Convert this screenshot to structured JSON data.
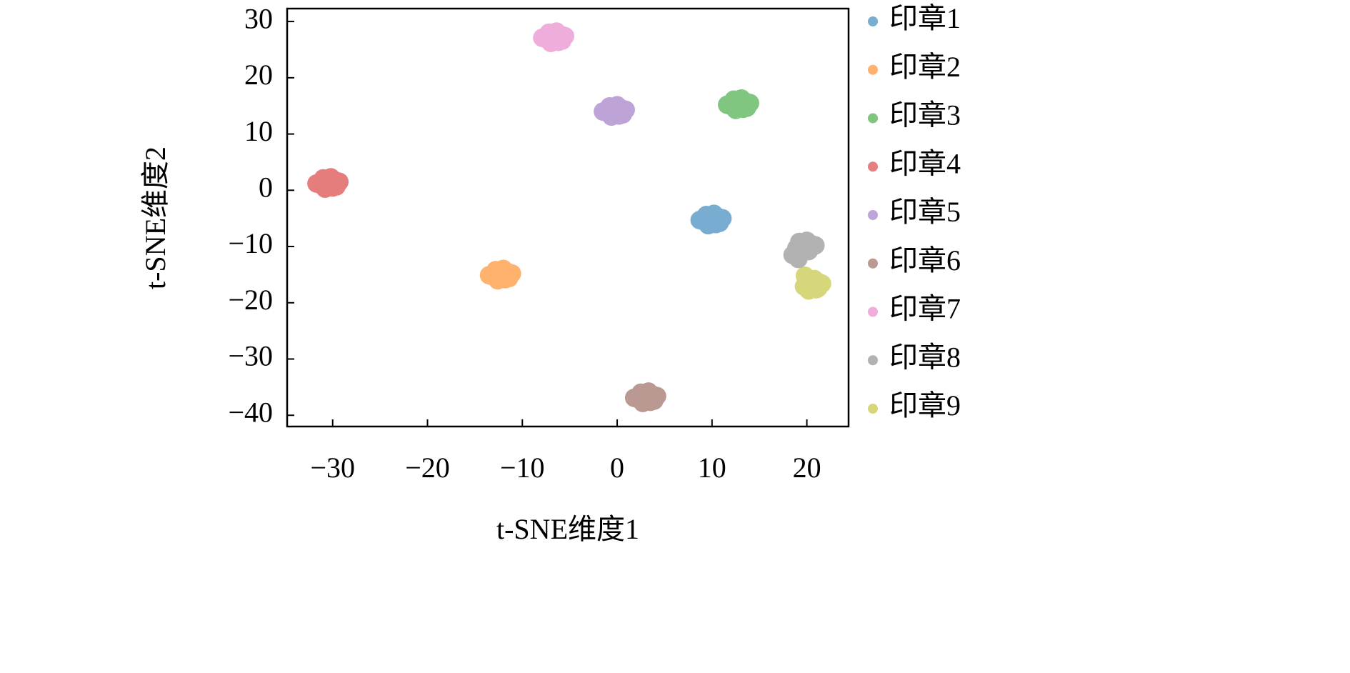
{
  "chart_data": {
    "type": "scatter",
    "xlabel": "t-SNE维度1",
    "ylabel": "t-SNE维度2",
    "xlim": [
      -34.8,
      24.4
    ],
    "ylim": [
      -42.0,
      32.3
    ],
    "xticks": [
      {
        "value": -30,
        "label": "−30"
      },
      {
        "value": -20,
        "label": "−20"
      },
      {
        "value": -10,
        "label": "−10"
      },
      0,
      10,
      20
    ],
    "yticks": [
      30,
      20,
      10,
      0,
      {
        "value": -10,
        "label": "−10"
      },
      {
        "value": -20,
        "label": "−20"
      },
      {
        "value": -30,
        "label": "−30"
      },
      {
        "value": -40,
        "label": "−40"
      }
    ],
    "legend": "outside-right",
    "alpha": 0.6,
    "series": [
      {
        "name": "印章1",
        "color": "#1f77b4",
        "x": [
          9.9,
          10.7,
          9.1,
          10.4,
          9.4,
          11.1,
          8.7,
          10.2,
          9.6,
          10.8
        ],
        "y": [
          -5.2,
          -4.8,
          -5.5,
          -6.0,
          -4.4,
          -5.0,
          -5.3,
          -4.2,
          -6.2,
          -5.8
        ]
      },
      {
        "name": "印章2",
        "color": "#ff7f0e",
        "x": [
          -12.3,
          -11.5,
          -13.1,
          -11.8,
          -12.8,
          -11.1,
          -13.5,
          -12.0,
          -12.6,
          -11.4
        ],
        "y": [
          -15,
          -14.6,
          -15.3,
          -15.8,
          -14.2,
          -14.8,
          -15.1,
          -14.0,
          -16.0,
          -15.6
        ]
      },
      {
        "name": "印章3",
        "color": "#2ca02c",
        "x": [
          12.8,
          13.6,
          12.0,
          13.3,
          12.3,
          14.0,
          11.6,
          13.1,
          12.5,
          13.7
        ],
        "y": [
          15.3,
          15.7,
          15.0,
          14.5,
          16.1,
          15.5,
          15.2,
          16.3,
          14.3,
          14.7
        ]
      },
      {
        "name": "印章4",
        "color": "#d62728",
        "x": [
          -30.5,
          -29.7,
          -31.3,
          -30.0,
          -31.0,
          -29.3,
          -31.7,
          -30.2,
          -30.8,
          -29.6
        ],
        "y": [
          1.3,
          1.7,
          1.0,
          0.5,
          2.1,
          1.5,
          1.2,
          2.3,
          0.3,
          0.7
        ]
      },
      {
        "name": "印章5",
        "color": "#9467bd",
        "x": [
          -0.3,
          0.5,
          -1.1,
          0.2,
          -0.8,
          0.9,
          -1.5,
          0,
          -0.6,
          0.6
        ],
        "y": [
          14.1,
          14.5,
          13.8,
          13.3,
          14.9,
          14.3,
          14.0,
          15.1,
          13.1,
          13.5
        ]
      },
      {
        "name": "印章6",
        "color": "#8c564b",
        "x": [
          3,
          3.8,
          2.2,
          3.5,
          2.5,
          4.2,
          1.8,
          3.3,
          2.7,
          3.9
        ],
        "y": [
          -36.8,
          -36.4,
          -37.1,
          -37.6,
          -36.0,
          -36.6,
          -36.9,
          -35.8,
          -37.8,
          -37.4
        ]
      },
      {
        "name": "印章7",
        "color": "#e377c2",
        "x": [
          -6.7,
          -5.9,
          -7.5,
          -6.2,
          -7.2,
          -5.5,
          -7.9,
          -6.4,
          -7.0,
          -5.8
        ],
        "y": [
          27.2,
          27.6,
          26.9,
          26.4,
          28.0,
          27.4,
          27.1,
          28.2,
          26.2,
          26.6
        ]
      },
      {
        "name": "印章8",
        "color": "#7f7f7f",
        "x": [
          19.7,
          20.5,
          18.9,
          20.2,
          19.2,
          20.9,
          18.5,
          20.0,
          19.4,
          19.1
        ],
        "y": [
          -10,
          -9.6,
          -10.3,
          -10.8,
          -9.2,
          -9.8,
          -11.5,
          -9.0,
          -11.0,
          -12.2
        ]
      },
      {
        "name": "印章9",
        "color": "#bcbd22",
        "x": [
          20.5,
          21.3,
          19.7,
          21.0,
          20.0,
          21.6,
          19.8,
          20.8,
          20.2,
          21.2
        ],
        "y": [
          -16.8,
          -16.4,
          -17.1,
          -17.6,
          -16.0,
          -16.6,
          -15.2,
          -15.8,
          -17.8,
          -17.4
        ]
      }
    ]
  }
}
